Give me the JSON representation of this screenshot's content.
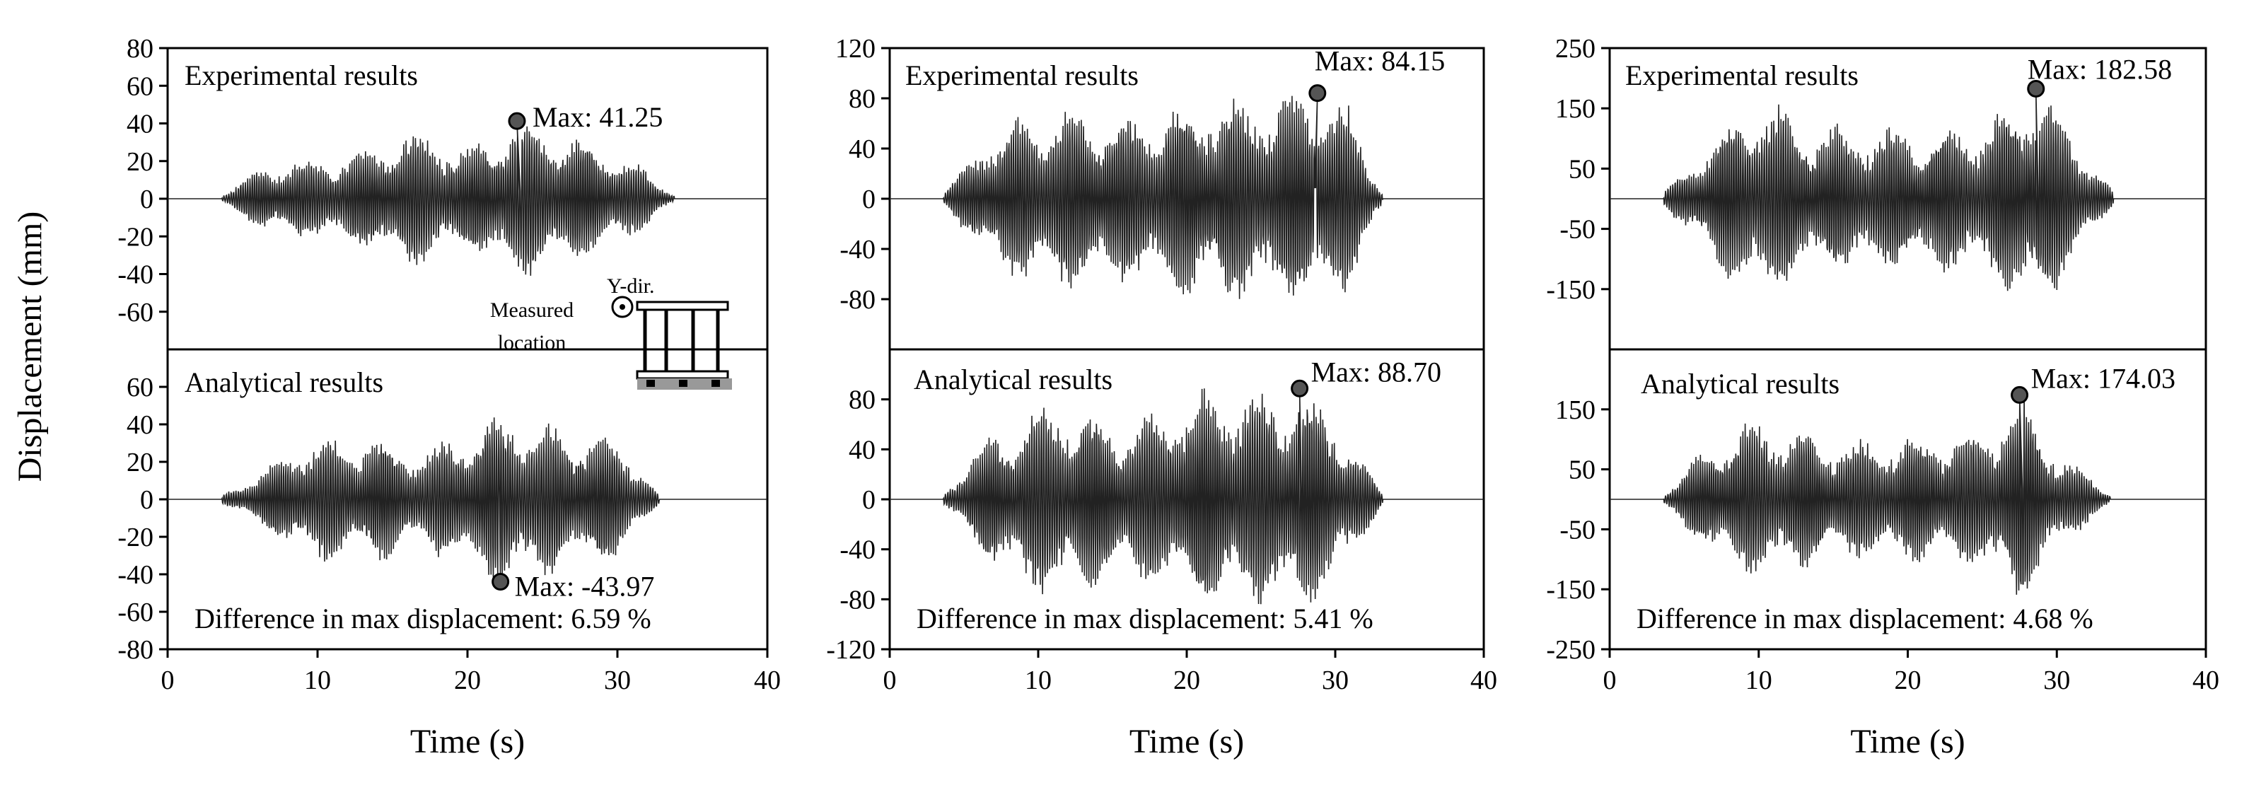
{
  "figure": {
    "ylabel": "Displacement (mm)",
    "xlabel": "Time (s)",
    "inset": {
      "direction_label": "Y-dir.",
      "measured_label_line1": "Measured",
      "measured_label_line2": "location"
    }
  },
  "chart_data": [
    {
      "type": "line",
      "column": 1,
      "xlabel": "Time (s)",
      "ylabel": "Displacement (mm)",
      "xlim": [
        0,
        40
      ],
      "xticks": [
        0,
        10,
        20,
        30,
        40
      ],
      "xtick_labels": [
        "0",
        "10",
        "20",
        "30",
        "40"
      ],
      "panels": [
        {
          "name": "experimental",
          "title": "Experimental results",
          "ylim": [
            -80,
            80
          ],
          "yticks": [
            -60,
            -40,
            -20,
            0,
            20,
            40,
            60,
            80
          ],
          "ytick_labels": [
            "-60",
            "-40",
            "-20",
            "0",
            "20",
            "40",
            "60",
            "80"
          ],
          "max_point": {
            "t": 23.3,
            "value": 41.25,
            "label": "Max: 41.25"
          },
          "signal": {
            "start": 3.6,
            "end": 33.8,
            "peak": 41.25,
            "seed": 11,
            "envelope": [
              [
                3.6,
                0.05
              ],
              [
                6.5,
                0.42
              ],
              [
                12,
                0.52
              ],
              [
                16.5,
                0.85
              ],
              [
                20,
                0.6
              ],
              [
                23.3,
                1.0
              ],
              [
                27,
                0.78
              ],
              [
                30,
                0.55
              ],
              [
                31.5,
                0.4
              ],
              [
                33.8,
                0.05
              ]
            ]
          }
        },
        {
          "name": "analytical",
          "title": "Analytical results",
          "ylim": [
            -80,
            80
          ],
          "yticks": [
            -80,
            -60,
            -40,
            -20,
            0,
            20,
            40,
            60
          ],
          "ytick_labels": [
            "-80",
            "-60",
            "-40",
            "-20",
            "0",
            "20",
            "40",
            "60"
          ],
          "max_point": {
            "t": 22.2,
            "value": -43.97,
            "label": "Max: -43.97"
          },
          "difference_text": "Difference in max displacement: 6.59 %",
          "signal": {
            "start": 3.6,
            "end": 32.8,
            "peak": 43.97,
            "seed": 21,
            "envelope": [
              [
                3.6,
                0.05
              ],
              [
                6.5,
                0.35
              ],
              [
                9,
                0.7
              ],
              [
                14,
                0.7
              ],
              [
                17,
                0.55
              ],
              [
                22.2,
                1.0
              ],
              [
                26,
                0.82
              ],
              [
                30,
                0.72
              ],
              [
                32.8,
                0.05
              ]
            ]
          }
        }
      ]
    },
    {
      "type": "line",
      "column": 2,
      "xlabel": "Time (s)",
      "ylabel": "Displacement (mm)",
      "xlim": [
        0,
        40
      ],
      "xticks": [
        0,
        10,
        20,
        30,
        40
      ],
      "xtick_labels": [
        "0",
        "10",
        "20",
        "30",
        "40"
      ],
      "panels": [
        {
          "name": "experimental",
          "title": "Experimental results",
          "ylim": [
            -120,
            120
          ],
          "yticks": [
            -80,
            -40,
            0,
            40,
            80,
            120
          ],
          "ytick_labels": [
            "-80",
            "-40",
            "0",
            "40",
            "80",
            "120"
          ],
          "max_point": {
            "t": 28.8,
            "value": 84.15,
            "label": "Max: 84.15"
          },
          "signal": {
            "start": 3.6,
            "end": 33.2,
            "peak": 84.15,
            "seed": 31,
            "envelope": [
              [
                3.6,
                0.05
              ],
              [
                7,
                0.62
              ],
              [
                11,
                0.82
              ],
              [
                16,
                0.72
              ],
              [
                21,
                0.9
              ],
              [
                26,
                0.9
              ],
              [
                28.8,
                1.0
              ],
              [
                31,
                0.8
              ],
              [
                33.2,
                0.05
              ]
            ]
          }
        },
        {
          "name": "analytical",
          "title": "Analytical results",
          "ylim": [
            -120,
            120
          ],
          "yticks": [
            -120,
            -80,
            -40,
            0,
            40,
            80
          ],
          "ytick_labels": [
            "-120",
            "-80",
            "-40",
            "0",
            "40",
            "80"
          ],
          "max_point": {
            "t": 27.6,
            "value": 88.7,
            "label": "Max: 88.70"
          },
          "difference_text": "Difference in max displacement: 5.41 %",
          "signal": {
            "start": 3.6,
            "end": 33.2,
            "peak": 88.7,
            "seed": 41,
            "envelope": [
              [
                3.6,
                0.05
              ],
              [
                7,
                0.6
              ],
              [
                11,
                0.85
              ],
              [
                16,
                0.65
              ],
              [
                21,
                0.92
              ],
              [
                25,
                0.9
              ],
              [
                27.6,
                1.0
              ],
              [
                31,
                0.55
              ],
              [
                33.2,
                0.05
              ]
            ]
          }
        }
      ]
    },
    {
      "type": "line",
      "column": 3,
      "xlabel": "Time (s)",
      "ylabel": "Displacement (mm)",
      "xlim": [
        0,
        40
      ],
      "xticks": [
        0,
        10,
        20,
        30,
        40
      ],
      "xtick_labels": [
        "0",
        "10",
        "20",
        "30",
        "40"
      ],
      "panels": [
        {
          "name": "experimental",
          "title": "Experimental results",
          "ylim": [
            -250,
            250
          ],
          "yticks": [
            -150,
            -50,
            50,
            150,
            250
          ],
          "ytick_labels": [
            "-150",
            "-50",
            "50",
            "150",
            "250"
          ],
          "max_point": {
            "t": 28.6,
            "value": 182.58,
            "label": "Max: 182.58"
          },
          "signal": {
            "start": 3.6,
            "end": 33.8,
            "peak": 182.58,
            "seed": 51,
            "envelope": [
              [
                3.6,
                0.05
              ],
              [
                7,
                0.55
              ],
              [
                10,
                0.9
              ],
              [
                14,
                0.62
              ],
              [
                20,
                0.6
              ],
              [
                25,
                0.62
              ],
              [
                28.6,
                1.0
              ],
              [
                31,
                0.6
              ],
              [
                33.8,
                0.05
              ]
            ]
          }
        },
        {
          "name": "analytical",
          "title": "Analytical results",
          "ylim": [
            -250,
            250
          ],
          "yticks": [
            -250,
            -150,
            -50,
            50,
            150
          ],
          "ytick_labels": [
            "-250",
            "-150",
            "-50",
            "50",
            "150"
          ],
          "max_point": {
            "t": 27.5,
            "value": 174.03,
            "label": "Max: 174.03"
          },
          "difference_text": "Difference in max displacement: 4.68 %",
          "signal": {
            "start": 3.6,
            "end": 33.6,
            "peak": 174.03,
            "seed": 61,
            "envelope": [
              [
                3.6,
                0.05
              ],
              [
                7,
                0.55
              ],
              [
                10,
                0.72
              ],
              [
                16,
                0.52
              ],
              [
                21,
                0.58
              ],
              [
                25,
                0.62
              ],
              [
                27.5,
                1.0
              ],
              [
                30,
                0.45
              ],
              [
                33.6,
                0.05
              ]
            ]
          }
        }
      ]
    }
  ]
}
